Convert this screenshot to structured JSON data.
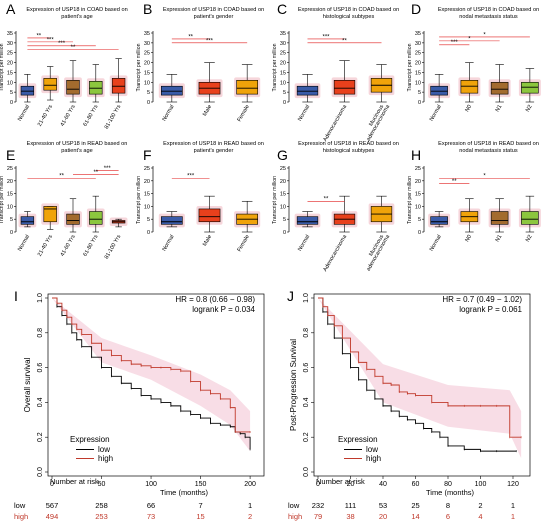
{
  "figure": {
    "background": "#ffffff"
  },
  "colors": {
    "normal": "#3a5ba8",
    "orange": "#f0a30a",
    "red": "#e8401c",
    "brown": "#a36b2e",
    "green": "#8cc63e",
    "halo": "#f2c4cc",
    "sig": "#e02020",
    "km_low": "#000000",
    "km_high": "#c0392b",
    "km_ci": "#f3c1d2"
  },
  "chart_data": [
    {
      "type": "box",
      "panel": "A",
      "title": [
        "Expression of USP18 in COAD based on",
        "patient's age"
      ],
      "ylabel": "Transcript per million",
      "ylim": [
        0,
        35
      ],
      "yticks": [
        0,
        5,
        10,
        15,
        20,
        25,
        30,
        35
      ],
      "categories": [
        "Normal",
        "21-40 Yrs",
        "41-60 Yrs",
        "61-80 Yrs",
        "81-100 Yrs"
      ],
      "box_colors": [
        "normal",
        "orange",
        "brown",
        "green",
        "red"
      ],
      "boxes": [
        [
          0,
          3.5,
          5.5,
          8,
          14
        ],
        [
          1,
          6,
          8.5,
          12,
          18
        ],
        [
          0,
          4,
          6.5,
          11,
          21
        ],
        [
          0,
          4,
          7,
          10.5,
          19
        ],
        [
          0,
          4.5,
          8,
          12,
          22
        ]
      ],
      "sig": [
        {
          "a": 0,
          "b": 1,
          "y": 32.5,
          "label": "**"
        },
        {
          "a": 0,
          "b": 2,
          "y": 30.5,
          "label": "***"
        },
        {
          "a": 0,
          "b": 3,
          "y": 28.5,
          "label": "***"
        },
        {
          "a": 0,
          "b": 4,
          "y": 26.5,
          "label": "**"
        }
      ]
    },
    {
      "type": "box",
      "panel": "B",
      "title": [
        "Expression of USP18 in COAD based on",
        "patient's gender"
      ],
      "ylabel": "Transcript per million",
      "ylim": [
        0,
        35
      ],
      "yticks": [
        0,
        5,
        10,
        15,
        20,
        25,
        30,
        35
      ],
      "categories": [
        "Normal",
        "Male",
        "Female"
      ],
      "box_colors": [
        "normal",
        "red",
        "orange"
      ],
      "boxes": [
        [
          0,
          3.5,
          5.5,
          8,
          14
        ],
        [
          0,
          4,
          7,
          10,
          20
        ],
        [
          0,
          4,
          7,
          11,
          19
        ]
      ],
      "sig": [
        {
          "a": 0,
          "b": 1,
          "y": 32,
          "label": "**"
        },
        {
          "a": 0,
          "b": 2,
          "y": 30,
          "label": "***"
        }
      ]
    },
    {
      "type": "box",
      "panel": "C",
      "title": [
        "Expression of USP18 in COAD based on",
        "histological subtypes"
      ],
      "ylabel": "Transcript per million",
      "ylim": [
        0,
        35
      ],
      "yticks": [
        0,
        5,
        10,
        15,
        20,
        25,
        30,
        35
      ],
      "categories": [
        "Normal",
        "Adenocarcinoma",
        "Mucinous adenocarcinoma"
      ],
      "box_colors": [
        "normal",
        "red",
        "orange"
      ],
      "boxes": [
        [
          0,
          3.5,
          5.5,
          8,
          14
        ],
        [
          0,
          4,
          7,
          11,
          21
        ],
        [
          0,
          5,
          8.5,
          12,
          19
        ]
      ],
      "sig": [
        {
          "a": 0,
          "b": 1,
          "y": 32,
          "label": "***"
        },
        {
          "a": 0,
          "b": 2,
          "y": 30,
          "label": "**"
        }
      ]
    },
    {
      "type": "box",
      "panel": "D",
      "title": [
        "Expression of USP18 in COAD based on",
        "nodal metastasis status"
      ],
      "ylabel": "Transcript per million",
      "ylim": [
        0,
        35
      ],
      "yticks": [
        0,
        5,
        10,
        15,
        20,
        25,
        30,
        35
      ],
      "categories": [
        "Normal",
        "N0",
        "N1",
        "N2"
      ],
      "box_colors": [
        "normal",
        "orange",
        "brown",
        "green"
      ],
      "boxes": [
        [
          0,
          3.5,
          5.5,
          8,
          14
        ],
        [
          0,
          4.5,
          8,
          11,
          20
        ],
        [
          0,
          4,
          6.5,
          10,
          19
        ],
        [
          0,
          4.5,
          7.5,
          10,
          17
        ]
      ],
      "sig": [
        {
          "a": 0,
          "b": 3,
          "y": 33,
          "label": "*"
        },
        {
          "a": 0,
          "b": 2,
          "y": 31,
          "label": "*"
        },
        {
          "a": 0,
          "b": 1,
          "y": 29,
          "label": "***"
        }
      ]
    },
    {
      "type": "box",
      "panel": "E",
      "title": [
        "Expression of USP18 in READ based on",
        "patient's age"
      ],
      "ylabel": "Transcript per million",
      "ylim": [
        0,
        25
      ],
      "yticks": [
        0,
        5,
        10,
        15,
        20,
        25
      ],
      "categories": [
        "Normal",
        "21-40 Yrs",
        "41-60 Yrs",
        "61-80 Yrs",
        "81-100 Yrs"
      ],
      "box_colors": [
        "normal",
        "orange",
        "brown",
        "green",
        "red"
      ],
      "boxes": [
        [
          2,
          3,
          4,
          6,
          8
        ],
        [
          1,
          4,
          9,
          10,
          10
        ],
        [
          0,
          3,
          4.5,
          7,
          13
        ],
        [
          0,
          3,
          5,
          8,
          14
        ],
        [
          2,
          3.5,
          4,
          4.5,
          5
        ]
      ],
      "sig": [
        {
          "a": 3,
          "b": 4,
          "y": 24,
          "label": "***"
        },
        {
          "a": 2,
          "b": 4,
          "y": 22.5,
          "label": "**"
        },
        {
          "a": 0,
          "b": 3,
          "y": 21,
          "label": "**"
        }
      ]
    },
    {
      "type": "box",
      "panel": "F",
      "title": [
        "Expression of USP18 in READ based on",
        "patient's gender"
      ],
      "ylabel": "Transcript per million",
      "ylim": [
        0,
        25
      ],
      "yticks": [
        0,
        5,
        10,
        15,
        20,
        25
      ],
      "categories": [
        "Normal",
        "Male",
        "Female"
      ],
      "box_colors": [
        "normal",
        "red",
        "orange"
      ],
      "boxes": [
        [
          2,
          3,
          4,
          6,
          8
        ],
        [
          0,
          4,
          6,
          9,
          14
        ],
        [
          0,
          3,
          5,
          7,
          12
        ]
      ],
      "sig": [
        {
          "a": 0,
          "b": 1,
          "y": 21,
          "label": "***"
        }
      ]
    },
    {
      "type": "box",
      "panel": "G",
      "title": [
        "Expression of USP18 in READ based on",
        "histological subtypes"
      ],
      "ylabel": "Transcript per million",
      "ylim": [
        0,
        25
      ],
      "yticks": [
        0,
        5,
        10,
        15,
        20,
        25
      ],
      "categories": [
        "Normal",
        "Adenocarcinoma",
        "Mucinous adenocarcinoma"
      ],
      "box_colors": [
        "normal",
        "red",
        "orange"
      ],
      "boxes": [
        [
          2,
          3,
          4,
          6,
          8
        ],
        [
          0,
          3,
          5,
          7,
          14
        ],
        [
          0,
          4,
          7,
          10,
          14
        ]
      ],
      "sig": [
        {
          "a": 0,
          "b": 1,
          "y": 12,
          "label": "**"
        }
      ]
    },
    {
      "type": "box",
      "panel": "H",
      "title": [
        "Expression of USP18 in READ based on",
        "nodal metastasis status"
      ],
      "ylabel": "Transcript per million",
      "ylim": [
        0,
        25
      ],
      "yticks": [
        0,
        5,
        10,
        15,
        20,
        25
      ],
      "categories": [
        "Normal",
        "N0",
        "N1",
        "N2"
      ],
      "box_colors": [
        "normal",
        "orange",
        "brown",
        "green"
      ],
      "boxes": [
        [
          2,
          3,
          4,
          6,
          8
        ],
        [
          0,
          4,
          6,
          8,
          13
        ],
        [
          0,
          3,
          4.5,
          8,
          13
        ],
        [
          0,
          3,
          5,
          8,
          14
        ]
      ],
      "sig": [
        {
          "a": 0,
          "b": 3,
          "y": 21,
          "label": "*"
        },
        {
          "a": 0,
          "b": 1,
          "y": 19,
          "label": "**"
        }
      ]
    },
    {
      "type": "line",
      "subtype": "kaplan-meier",
      "panel": "I",
      "ylabel": "Overall survival",
      "xlabel": "Time (months)",
      "xlim": [
        0,
        210
      ],
      "ylim": [
        0,
        1
      ],
      "xticks": [
        0,
        50,
        100,
        150,
        200
      ],
      "yticks": [
        0,
        0.2,
        0.4,
        0.6,
        0.8,
        1.0
      ],
      "ytick_labels": [
        "0.0",
        "0.2",
        "0.4",
        "0.6",
        "0.8",
        "1.0"
      ],
      "hr_text": "HR = 0.8 (0.66 − 0.98)",
      "p_text": "logrank P = 0.034",
      "legend": {
        "title": "Expression",
        "entries": [
          "low",
          "high"
        ]
      },
      "series": [
        {
          "name": "low",
          "color": "km_low",
          "x": [
            0,
            5,
            10,
            15,
            20,
            25,
            30,
            40,
            50,
            60,
            70,
            80,
            90,
            100,
            110,
            120,
            130,
            140,
            150,
            160,
            170,
            180,
            185,
            190,
            195,
            200
          ],
          "y": [
            1,
            0.95,
            0.9,
            0.85,
            0.8,
            0.76,
            0.72,
            0.66,
            0.6,
            0.55,
            0.51,
            0.48,
            0.44,
            0.42,
            0.4,
            0.38,
            0.35,
            0.33,
            0.31,
            0.28,
            0.27,
            0.26,
            0.23,
            0.22,
            0.2,
            0.13
          ]
        },
        {
          "name": "high",
          "color": "km_high",
          "x": [
            0,
            5,
            10,
            15,
            20,
            25,
            30,
            40,
            50,
            60,
            70,
            80,
            90,
            100,
            110,
            120,
            130,
            140,
            150,
            160,
            170,
            180,
            185,
            200
          ],
          "y": [
            1,
            0.97,
            0.93,
            0.89,
            0.85,
            0.82,
            0.79,
            0.74,
            0.7,
            0.67,
            0.64,
            0.62,
            0.61,
            0.6,
            0.6,
            0.59,
            0.58,
            0.52,
            0.47,
            0.45,
            0.42,
            0.37,
            0.23,
            0.23
          ]
        }
      ],
      "ci": {
        "x": [
          0,
          50,
          100,
          150,
          180,
          200
        ],
        "upper": [
          1,
          0.77,
          0.67,
          0.56,
          0.47,
          0.35
        ],
        "lower": [
          1,
          0.63,
          0.53,
          0.38,
          0.27,
          0.12
        ]
      },
      "risk": {
        "title": "Number at risk",
        "ticks": [
          0,
          50,
          100,
          150,
          200
        ],
        "rows": [
          {
            "name": "low",
            "values": [
              "567",
              "258",
              "66",
              "7",
              "1"
            ]
          },
          {
            "name": "high",
            "values": [
              "494",
              "253",
              "73",
              "15",
              "2"
            ]
          }
        ]
      }
    },
    {
      "type": "line",
      "subtype": "kaplan-meier",
      "panel": "J",
      "ylabel": "Post-Progression Survival",
      "xlabel": "Time (months)",
      "xlim": [
        0,
        128
      ],
      "ylim": [
        0,
        1
      ],
      "xticks": [
        0,
        20,
        40,
        60,
        80,
        100,
        120
      ],
      "yticks": [
        0,
        0.2,
        0.4,
        0.6,
        0.8,
        1.0
      ],
      "ytick_labels": [
        "0.0",
        "0.2",
        "0.4",
        "0.6",
        "0.8",
        "1.0"
      ],
      "hr_text": "HR = 0.7 (0.49 − 1.02)",
      "p_text": "logrank P = 0.061",
      "legend": {
        "title": "Expression",
        "entries": [
          "low",
          "high"
        ]
      },
      "series": [
        {
          "name": "low",
          "color": "km_low",
          "x": [
            0,
            3,
            6,
            10,
            15,
            20,
            25,
            30,
            35,
            40,
            45,
            50,
            55,
            60,
            65,
            70,
            75,
            80,
            90,
            100,
            110,
            122
          ],
          "y": [
            1,
            0.92,
            0.85,
            0.77,
            0.68,
            0.6,
            0.53,
            0.47,
            0.42,
            0.38,
            0.35,
            0.32,
            0.3,
            0.28,
            0.25,
            0.23,
            0.2,
            0.15,
            0.13,
            0.12,
            0.12,
            0.12
          ]
        },
        {
          "name": "high",
          "color": "km_high",
          "x": [
            0,
            3,
            6,
            10,
            15,
            20,
            25,
            30,
            35,
            40,
            45,
            50,
            55,
            60,
            70,
            80,
            90,
            100,
            110,
            118,
            125
          ],
          "y": [
            1,
            0.95,
            0.9,
            0.84,
            0.77,
            0.69,
            0.63,
            0.59,
            0.55,
            0.51,
            0.5,
            0.46,
            0.45,
            0.44,
            0.4,
            0.38,
            0.38,
            0.38,
            0.38,
            0.2,
            0.2
          ]
        }
      ],
      "ci": {
        "x": [
          0,
          40,
          80,
          118,
          125
        ],
        "upper": [
          1,
          0.62,
          0.5,
          0.47,
          0.35
        ],
        "lower": [
          1,
          0.4,
          0.26,
          0.22,
          0.08
        ]
      },
      "risk": {
        "title": "Number at risk",
        "ticks": [
          0,
          20,
          40,
          60,
          80,
          100,
          120
        ],
        "rows": [
          {
            "name": "low",
            "values": [
              "232",
              "111",
              "53",
              "25",
              "8",
              "2",
              "1"
            ]
          },
          {
            "name": "high",
            "values": [
              "79",
              "38",
              "20",
              "14",
              "6",
              "4",
              "1"
            ]
          }
        ]
      }
    }
  ]
}
